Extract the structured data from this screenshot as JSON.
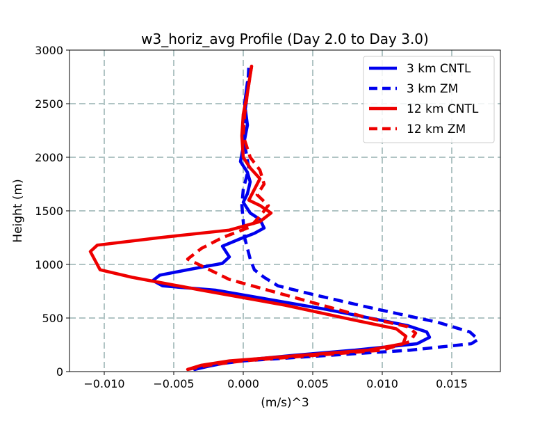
{
  "chart_data": {
    "type": "line",
    "title": "w3_horiz_avg Profile (Day 2.0 to Day 3.0)",
    "xlabel": "(m/s)^3",
    "ylabel": "Height (m)",
    "xlim": [
      -0.0125,
      0.0185
    ],
    "ylim": [
      0,
      3000
    ],
    "xticks": [
      -0.01,
      -0.005,
      0.0,
      0.005,
      0.01,
      0.015
    ],
    "xtick_labels": [
      "−0.010",
      "−0.005",
      "0.000",
      "0.005",
      "0.010",
      "0.015"
    ],
    "yticks": [
      0,
      500,
      1000,
      1500,
      2000,
      2500,
      3000
    ],
    "ytick_labels": [
      "0",
      "500",
      "1000",
      "1500",
      "2000",
      "2500",
      "3000"
    ],
    "grid": true,
    "grid_style": "dashed",
    "legend_position": "top-right",
    "series": [
      {
        "name": "3 km CNTL",
        "color": "#0000ee",
        "dash": "solid",
        "x": [
          -0.0035,
          -0.0025,
          -0.0005,
          0.0035,
          0.008,
          0.0125,
          0.0134,
          0.0132,
          0.0118,
          0.006,
          -0.002,
          -0.0058,
          -0.0065,
          -0.006,
          -0.004,
          -0.0015,
          -0.001,
          -0.0015,
          -0.0002,
          0.0008,
          0.0015,
          0.0012,
          0.0005,
          0.0,
          0.0003,
          0.0005,
          0.0003,
          -0.0002,
          0.0,
          0.0003,
          0.0001,
          0.0003
        ],
        "y": [
          20,
          50,
          100,
          150,
          200,
          260,
          320,
          370,
          430,
          580,
          760,
          800,
          850,
          900,
          950,
          1010,
          1070,
          1170,
          1240,
          1290,
          1340,
          1420,
          1480,
          1580,
          1660,
          1770,
          1860,
          1960,
          2100,
          2300,
          2500,
          2700
        ]
      },
      {
        "name": "3 km ZM",
        "color": "#0000ee",
        "dash": "dashed",
        "x": [
          -0.0035,
          -0.0025,
          0.0,
          0.006,
          0.012,
          0.0164,
          0.0169,
          0.0163,
          0.014,
          0.009,
          0.005,
          0.0025,
          0.0015,
          0.0008,
          0.0005,
          0.0003,
          0.0001,
          0.0,
          -0.0001,
          0.0,
          0.0002,
          0.0004,
          0.0002,
          0.0,
          0.0001,
          0.0003,
          0.0004
        ],
        "y": [
          20,
          60,
          100,
          150,
          200,
          260,
          300,
          370,
          460,
          600,
          720,
          800,
          880,
          950,
          1050,
          1150,
          1250,
          1400,
          1550,
          1700,
          1800,
          1900,
          2050,
          2200,
          2400,
          2600,
          2850
        ]
      },
      {
        "name": "12 km CNTL",
        "color": "#ee0000",
        "dash": "solid",
        "x": [
          -0.004,
          -0.003,
          -0.001,
          0.004,
          0.009,
          0.0115,
          0.0117,
          0.011,
          0.008,
          0.003,
          -0.003,
          -0.008,
          -0.0103,
          -0.011,
          -0.0105,
          -0.006,
          -0.001,
          0.0012,
          0.002,
          0.0012,
          0.0004,
          0.0008,
          0.0012,
          0.0005,
          0.0,
          -0.0001,
          0.0,
          0.0003,
          0.0006
        ],
        "y": [
          20,
          60,
          100,
          150,
          200,
          260,
          330,
          400,
          480,
          620,
          760,
          880,
          950,
          1120,
          1180,
          1250,
          1320,
          1400,
          1480,
          1550,
          1600,
          1700,
          1800,
          1900,
          2000,
          2200,
          2400,
          2600,
          2850
        ]
      },
      {
        "name": "12 km ZM",
        "color": "#ee0000",
        "dash": "dashed",
        "x": [
          -0.004,
          -0.0025,
          0.0,
          0.005,
          0.01,
          0.012,
          0.0124,
          0.0118,
          0.009,
          0.004,
          -0.001,
          -0.004,
          -0.003,
          -0.0015,
          0.0005,
          0.0012,
          0.0018,
          0.001,
          0.0015,
          0.0012,
          0.0005,
          0.0,
          0.0001,
          0.0003,
          0.0006
        ],
        "y": [
          20,
          60,
          100,
          150,
          200,
          280,
          360,
          420,
          500,
          680,
          860,
          1050,
          1150,
          1250,
          1350,
          1450,
          1550,
          1650,
          1750,
          1880,
          2000,
          2200,
          2400,
          2600,
          2850
        ]
      }
    ]
  }
}
